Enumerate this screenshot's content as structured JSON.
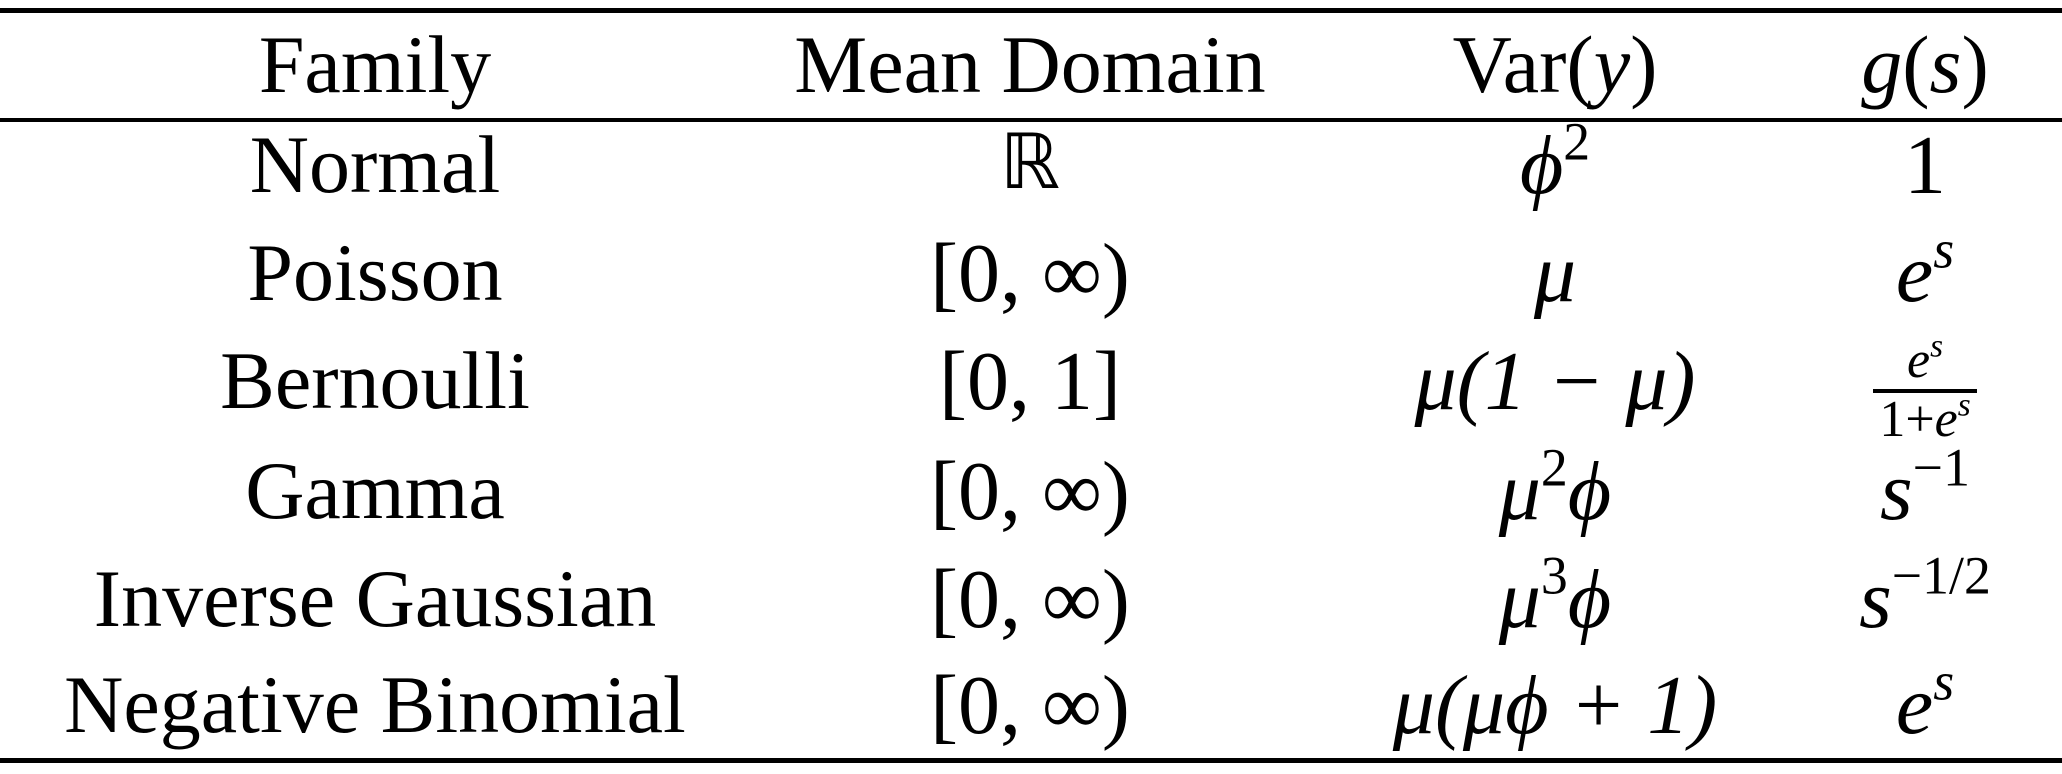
{
  "table": {
    "headers": {
      "family": "Family",
      "mean_domain": "Mean Domain",
      "var_label": "Var",
      "var_open": "(",
      "var_y": "y",
      "var_close": ")",
      "g": "g",
      "g_open": "(",
      "g_s": "s",
      "g_close": ")"
    },
    "rows": [
      {
        "family": "Normal",
        "domain": "ℝ",
        "var": {
          "base": "ϕ",
          "sup": "2"
        },
        "g": "1"
      },
      {
        "family": "Poisson",
        "domain": "[0, ∞)",
        "var": "μ",
        "g": {
          "base": "e",
          "sup": "s"
        }
      },
      {
        "family": "Bernoulli",
        "domain": "[0, 1]",
        "var": "μ(1 − μ)",
        "g": {
          "num_base": "e",
          "num_sup": "s",
          "den_prefix": "1+",
          "den_base": "e",
          "den_sup": "s"
        }
      },
      {
        "family": "Gamma",
        "domain": "[0, ∞)",
        "var": {
          "base": "μ",
          "sup": "2",
          "tail": "ϕ"
        },
        "g": {
          "base": "s",
          "sup": "−1"
        }
      },
      {
        "family": "Inverse Gaussian",
        "domain": "[0, ∞)",
        "var": {
          "base": "μ",
          "sup": "3",
          "tail": "ϕ"
        },
        "g": {
          "base": "s",
          "sup": "−1/2"
        }
      },
      {
        "family": "Negative Binomial",
        "domain": "[0, ∞)",
        "var": "μ(μϕ + 1)",
        "g": {
          "base": "e",
          "sup": "s"
        }
      }
    ]
  }
}
